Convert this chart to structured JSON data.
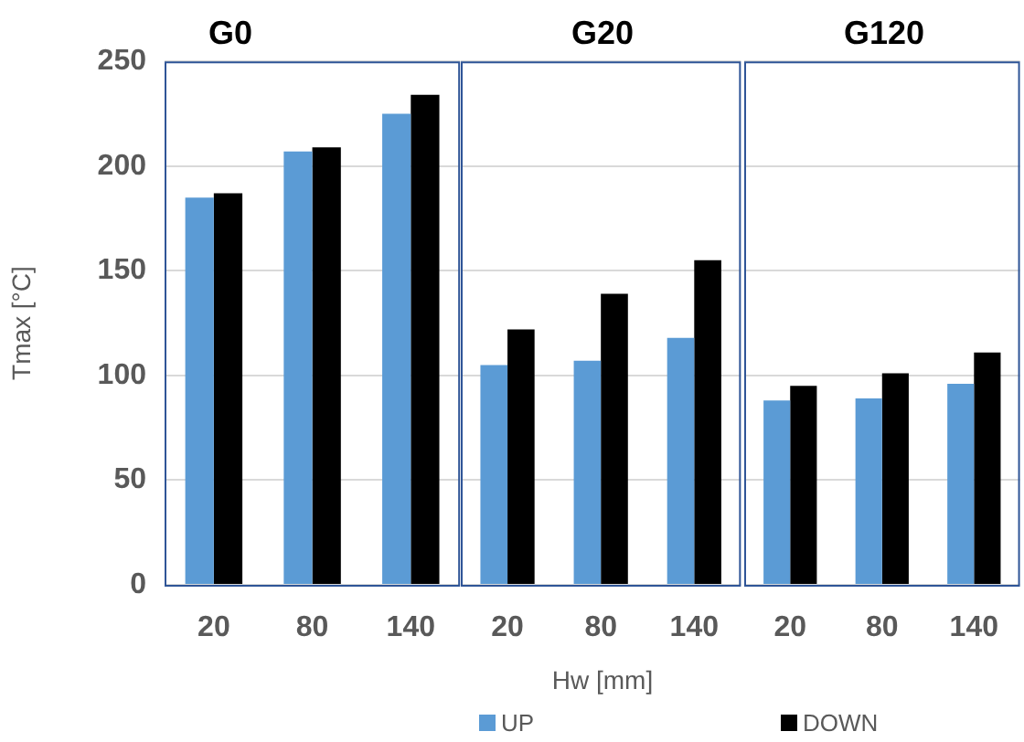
{
  "chart_data": [
    {
      "type": "bar",
      "title": "G0",
      "ylabel": "Tmax [°C]",
      "categories": [
        "20",
        "80",
        "140"
      ],
      "series": [
        {
          "color": "#5b9bd5",
          "values": [
            185,
            207,
            225
          ]
        },
        {
          "color": "#000000",
          "values": [
            187,
            209,
            234
          ]
        }
      ],
      "ylim": [
        0,
        250
      ],
      "yticks": [
        0,
        50,
        100,
        150,
        200,
        250
      ],
      "grid": "y",
      "legend": false
    },
    {
      "type": "bar",
      "title": "G20",
      "xlabel": "Hw [mm]",
      "categories": [
        "20",
        "80",
        "140"
      ],
      "series": [
        {
          "name": "UP",
          "color": "#5b9bd5",
          "values": [
            105,
            107,
            118
          ]
        },
        {
          "name": "DOWN",
          "color": "#000000",
          "values": [
            122,
            139,
            155
          ]
        }
      ],
      "ylim": [
        0,
        250
      ],
      "yticks": [
        0,
        50,
        100,
        150,
        200,
        250
      ],
      "grid": "y",
      "legend": "bottom",
      "tick_labels": "x"
    },
    {
      "type": "bar",
      "title": "G120",
      "categories": [
        "20",
        "80",
        "140"
      ],
      "series": [
        {
          "color": "#5b9bd5",
          "values": [
            88,
            89,
            96
          ]
        },
        {
          "color": "#000000",
          "values": [
            95,
            101,
            111
          ]
        }
      ],
      "ylim": [
        0,
        250
      ],
      "yticks": [
        0,
        50,
        100,
        150,
        200,
        250
      ],
      "grid": "y",
      "legend": false,
      "tick_labels": "x"
    }
  ]
}
